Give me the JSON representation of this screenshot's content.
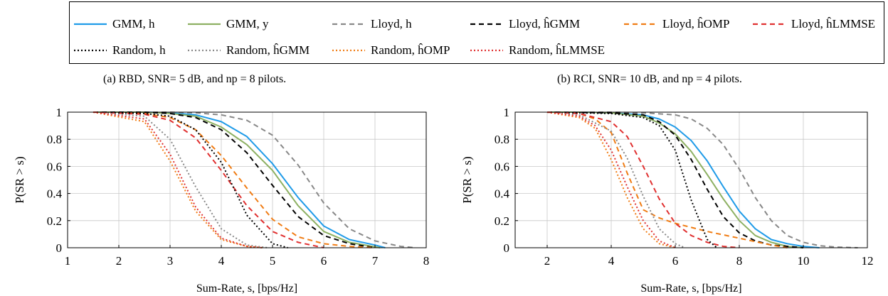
{
  "legend": {
    "items": [
      {
        "id": "gmm-h",
        "label": "GMM, h",
        "color": "#1f9be8",
        "dash": "solid"
      },
      {
        "id": "gmm-y",
        "label": "GMM, y",
        "color": "#8db062",
        "dash": "solid"
      },
      {
        "id": "lloyd-h",
        "label": "Lloyd, h",
        "color": "#888888",
        "dash": "dashed"
      },
      {
        "id": "lloyd-hgmm",
        "label": "Lloyd, ĥGMM",
        "color": "#000000",
        "dash": "dashed"
      },
      {
        "id": "lloyd-homp",
        "label": "Lloyd, ĥOMP",
        "color": "#f07c14",
        "dash": "dashed"
      },
      {
        "id": "lloyd-hlmmse",
        "label": "Lloyd, ĥLMMSE",
        "color": "#e03030",
        "dash": "dashed"
      },
      {
        "id": "random-h",
        "label": "Random, h",
        "color": "#000000",
        "dash": "dotted"
      },
      {
        "id": "random-hgmm",
        "label": "Random, ĥGMM",
        "color": "#888888",
        "dash": "dotted"
      },
      {
        "id": "random-homp",
        "label": "Random, ĥOMP",
        "color": "#f07c14",
        "dash": "dotted"
      },
      {
        "id": "random-hlmmse",
        "label": "Random, ĥLMMSE",
        "color": "#e03030",
        "dash": "dotted"
      }
    ]
  },
  "captions": {
    "a": "(a) RBD, SNR= 5 dB, and np = 8 pilots.",
    "b": "(b) RCI, SNR= 10 dB, and np = 4 pilots."
  },
  "chart_data": [
    {
      "type": "line",
      "xlabel": "Sum-Rate, s, [bps/Hz]",
      "ylabel": "P(SR > s)",
      "xlim": [
        1,
        8
      ],
      "ylim": [
        0,
        1
      ],
      "xticks": [
        1,
        2,
        3,
        4,
        5,
        6,
        7,
        8
      ],
      "yticks": [
        0,
        0.2,
        0.4,
        0.6,
        0.8,
        1
      ],
      "grid": true,
      "series": [
        {
          "name": "GMM, h",
          "color": "#1f9be8",
          "dash": "solid",
          "x": [
            1.5,
            2.5,
            3,
            3.5,
            4,
            4.5,
            5,
            5.5,
            6,
            6.5,
            7,
            7.2
          ],
          "y": [
            1,
            1,
            0.995,
            0.98,
            0.93,
            0.82,
            0.62,
            0.37,
            0.16,
            0.06,
            0.02,
            0
          ]
        },
        {
          "name": "GMM, y",
          "color": "#8db062",
          "dash": "solid",
          "x": [
            1.5,
            2.5,
            3,
            3.5,
            4,
            4.5,
            5,
            5.5,
            6,
            6.5,
            7.1
          ],
          "y": [
            1,
            1,
            0.99,
            0.97,
            0.89,
            0.76,
            0.57,
            0.31,
            0.12,
            0.04,
            0
          ]
        },
        {
          "name": "Lloyd, h",
          "color": "#888888",
          "dash": "dashed",
          "x": [
            1.5,
            2.5,
            3,
            3.5,
            4,
            4.5,
            5,
            5.5,
            6,
            6.5,
            7,
            7.5,
            7.8
          ],
          "y": [
            1,
            1,
            1,
            0.995,
            0.98,
            0.94,
            0.83,
            0.61,
            0.33,
            0.14,
            0.05,
            0.01,
            0
          ]
        },
        {
          "name": "Lloyd, ĥGMM",
          "color": "#000000",
          "dash": "dashed",
          "x": [
            1.5,
            2.5,
            3,
            3.5,
            4,
            4.5,
            5,
            5.5,
            6,
            6.5,
            7
          ],
          "y": [
            1,
            1,
            0.99,
            0.96,
            0.87,
            0.7,
            0.46,
            0.23,
            0.09,
            0.03,
            0
          ]
        },
        {
          "name": "Lloyd, ĥOMP",
          "color": "#f07c14",
          "dash": "dashed",
          "x": [
            1.5,
            2.5,
            3,
            3.5,
            4,
            4.5,
            5,
            5.5,
            6,
            6.5,
            7
          ],
          "y": [
            1,
            0.99,
            0.96,
            0.87,
            0.68,
            0.44,
            0.21,
            0.08,
            0.03,
            0.01,
            0
          ]
        },
        {
          "name": "Lloyd, ĥLMMSE",
          "color": "#e03030",
          "dash": "dashed",
          "x": [
            1.5,
            2.5,
            3,
            3.5,
            4,
            4.5,
            5,
            5.5,
            6
          ],
          "y": [
            1,
            0.985,
            0.94,
            0.81,
            0.57,
            0.31,
            0.12,
            0.04,
            0
          ]
        },
        {
          "name": "Random, h",
          "color": "#000000",
          "dash": "dotted",
          "x": [
            1.5,
            2.5,
            3,
            3.5,
            4,
            4.5,
            5,
            5.3
          ],
          "y": [
            1,
            0.99,
            0.97,
            0.87,
            0.63,
            0.24,
            0.03,
            0
          ]
        },
        {
          "name": "Random, ĥGMM",
          "color": "#888888",
          "dash": "dotted",
          "x": [
            1.5,
            2.5,
            3,
            3.5,
            4,
            4.5,
            4.9
          ],
          "y": [
            1,
            0.97,
            0.8,
            0.45,
            0.14,
            0.02,
            0
          ]
        },
        {
          "name": "Random, ĥOMP",
          "color": "#f07c14",
          "dash": "dotted",
          "x": [
            1.5,
            2.5,
            3,
            3.5,
            4,
            4.5,
            4.8
          ],
          "y": [
            1,
            0.93,
            0.64,
            0.27,
            0.06,
            0.01,
            0
          ]
        },
        {
          "name": "Random, ĥLMMSE",
          "color": "#e03030",
          "dash": "dotted",
          "x": [
            1.5,
            2.5,
            3,
            3.5,
            4,
            4.5,
            4.8
          ],
          "y": [
            1,
            0.95,
            0.69,
            0.3,
            0.07,
            0.01,
            0
          ]
        }
      ]
    },
    {
      "type": "line",
      "xlabel": "Sum-Rate, s, [bps/Hz]",
      "ylabel": "P(SR > s)",
      "xlim": [
        1,
        12
      ],
      "ylim": [
        0,
        1
      ],
      "xticks": [
        2,
        4,
        6,
        8,
        10,
        12
      ],
      "yticks": [
        0,
        0.2,
        0.4,
        0.6,
        0.8,
        1
      ],
      "grid": true,
      "series": [
        {
          "name": "GMM, h",
          "color": "#1f9be8",
          "dash": "solid",
          "x": [
            2,
            3,
            4,
            5,
            5.5,
            6,
            6.5,
            7,
            7.5,
            8,
            8.5,
            9,
            9.5,
            10,
            10.5
          ],
          "y": [
            1,
            1,
            0.995,
            0.98,
            0.95,
            0.89,
            0.79,
            0.64,
            0.45,
            0.27,
            0.14,
            0.06,
            0.03,
            0.01,
            0
          ]
        },
        {
          "name": "GMM, y",
          "color": "#8db062",
          "dash": "solid",
          "x": [
            2,
            3,
            4,
            5,
            5.5,
            6,
            6.5,
            7,
            7.5,
            8,
            8.5,
            9,
            9.5,
            10
          ],
          "y": [
            1,
            1,
            0.995,
            0.97,
            0.92,
            0.84,
            0.71,
            0.54,
            0.36,
            0.2,
            0.09,
            0.04,
            0.01,
            0
          ]
        },
        {
          "name": "Lloyd, h",
          "color": "#888888",
          "dash": "dashed",
          "x": [
            2,
            4,
            5,
            6,
            6.5,
            7,
            7.5,
            8,
            8.5,
            9,
            9.5,
            10,
            10.5,
            11,
            11.7
          ],
          "y": [
            1,
            1,
            0.995,
            0.98,
            0.95,
            0.88,
            0.76,
            0.58,
            0.37,
            0.2,
            0.09,
            0.04,
            0.015,
            0.005,
            0
          ]
        },
        {
          "name": "Lloyd, ĥGMM",
          "color": "#000000",
          "dash": "dashed",
          "x": [
            2,
            4,
            5,
            5.5,
            6,
            6.5,
            7,
            7.5,
            8,
            8.5,
            9,
            9.5,
            10
          ],
          "y": [
            1,
            0.995,
            0.98,
            0.93,
            0.83,
            0.65,
            0.43,
            0.23,
            0.11,
            0.05,
            0.02,
            0.01,
            0
          ]
        },
        {
          "name": "Lloyd, ĥOMP",
          "color": "#f07c14",
          "dash": "dashed",
          "x": [
            2,
            3,
            3.5,
            4,
            4.5,
            5,
            5.5,
            6,
            7,
            8,
            9,
            9.5
          ],
          "y": [
            1,
            0.99,
            0.95,
            0.85,
            0.55,
            0.28,
            0.22,
            0.18,
            0.12,
            0.07,
            0.02,
            0
          ]
        },
        {
          "name": "Lloyd, ĥLMMSE",
          "color": "#e03030",
          "dash": "dashed",
          "x": [
            2,
            3,
            4,
            4.5,
            5,
            5.5,
            6,
            6.5,
            7,
            7.5,
            8
          ],
          "y": [
            1,
            0.99,
            0.93,
            0.82,
            0.6,
            0.36,
            0.18,
            0.09,
            0.04,
            0.01,
            0
          ]
        },
        {
          "name": "Random, h",
          "color": "#000000",
          "dash": "dotted",
          "x": [
            2,
            4,
            5,
            5.5,
            6,
            6.5,
            7,
            7.3
          ],
          "y": [
            1,
            0.99,
            0.96,
            0.9,
            0.72,
            0.35,
            0.06,
            0
          ]
        },
        {
          "name": "Random, ĥGMM",
          "color": "#888888",
          "dash": "dotted",
          "x": [
            2,
            3,
            4,
            4.5,
            5,
            5.5,
            6,
            6.3
          ],
          "y": [
            1,
            0.98,
            0.86,
            0.66,
            0.38,
            0.14,
            0.03,
            0
          ]
        },
        {
          "name": "Random, ĥOMP",
          "color": "#f07c14",
          "dash": "dotted",
          "x": [
            2,
            3,
            3.5,
            4,
            4.5,
            5,
            5.5,
            6
          ],
          "y": [
            1,
            0.96,
            0.88,
            0.65,
            0.37,
            0.14,
            0.03,
            0
          ]
        },
        {
          "name": "Random, ĥLMMSE",
          "color": "#e03030",
          "dash": "dotted",
          "x": [
            2,
            3,
            3.5,
            4,
            4.5,
            5,
            5.5,
            6
          ],
          "y": [
            1,
            0.97,
            0.9,
            0.72,
            0.45,
            0.2,
            0.05,
            0
          ]
        }
      ]
    }
  ]
}
